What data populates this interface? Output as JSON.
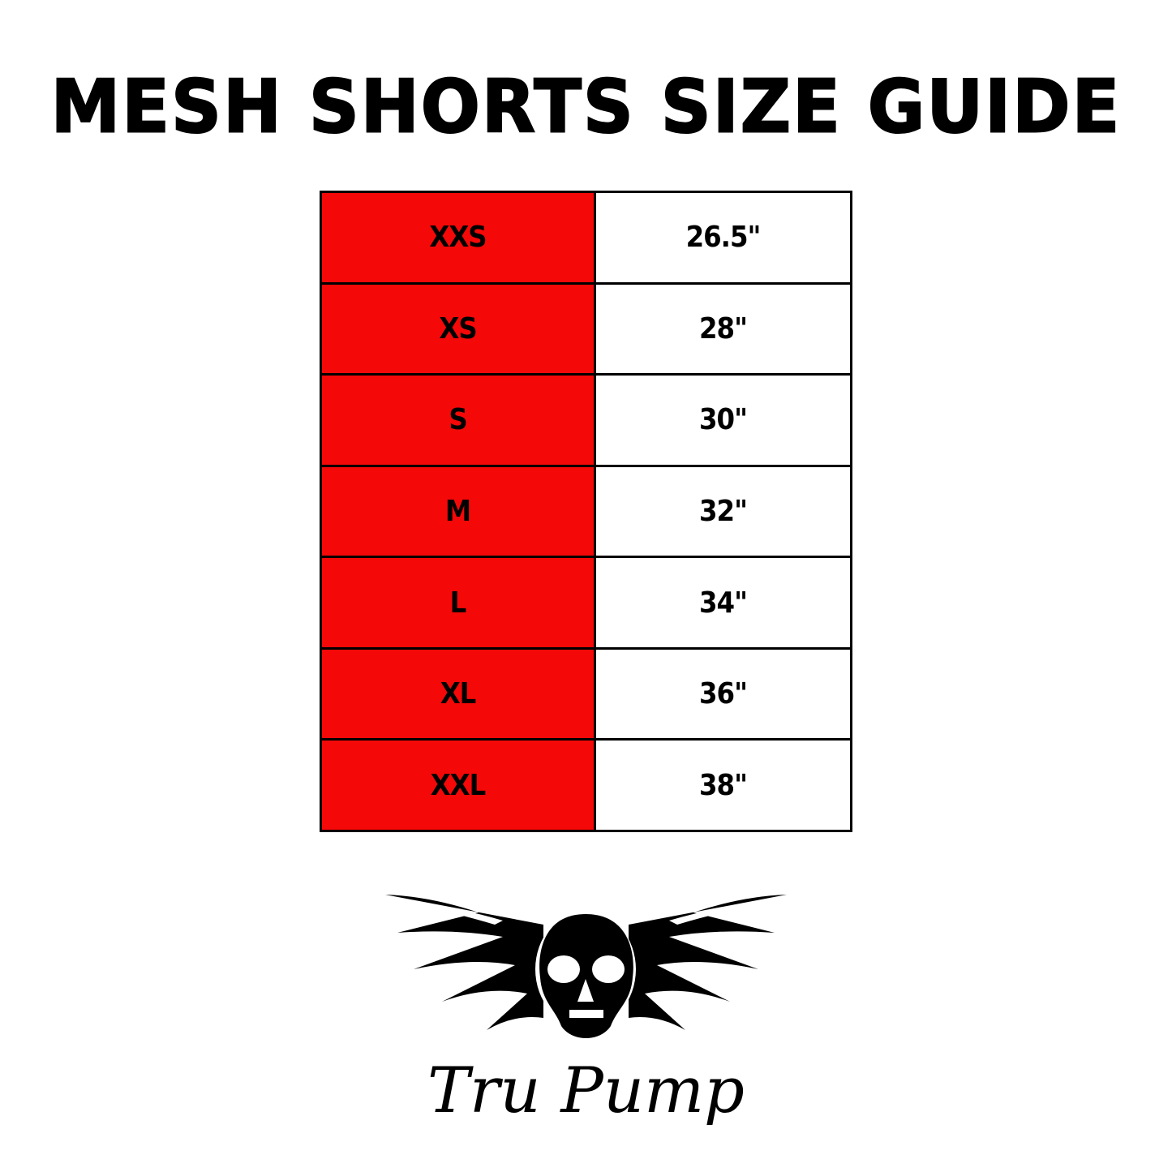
{
  "title": "MESH SHORTS SIZE GUIDE",
  "colors": {
    "size_column": "#f40808",
    "value_column": "#ffffff",
    "border": "#000000"
  },
  "rows": [
    {
      "size": "XXS",
      "waist": "26.5\""
    },
    {
      "size": "XS",
      "waist": "28\""
    },
    {
      "size": "S",
      "waist": "30\""
    },
    {
      "size": "M",
      "waist": "32\""
    },
    {
      "size": "L",
      "waist": "34\""
    },
    {
      "size": "XL",
      "waist": "36\""
    },
    {
      "size": "XXL",
      "waist": "38\""
    }
  ],
  "logo": {
    "icon": "winged-skull-icon",
    "brand": "Tru Pump"
  }
}
